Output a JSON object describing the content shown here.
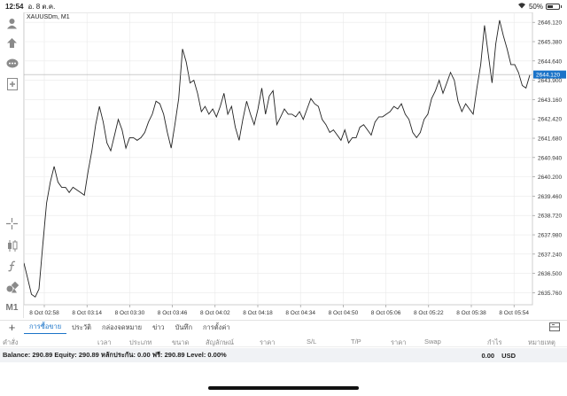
{
  "status_bar": {
    "time": "12:54",
    "date": "อ. 8 ต.ค.",
    "battery": "50%",
    "battery_level": 0.5
  },
  "chart": {
    "symbol_label": "XAUUSDm, M1",
    "current_price": "2644.120",
    "colors": {
      "line": "#222222",
      "grid": "#e9e9e9",
      "price_tag": "#1a73c8"
    }
  },
  "chart_data": {
    "type": "line",
    "series": [
      {
        "values": [
          2636.9,
          2636.3,
          2635.7,
          2635.6,
          2635.9,
          2637.6,
          2639.2,
          2640.0,
          2640.6,
          2640.0,
          2639.8,
          2639.8,
          2639.6,
          2639.8,
          2639.7,
          2639.6,
          2639.5,
          2640.4,
          2641.2,
          2642.2,
          2642.9,
          2642.3,
          2641.5,
          2641.2,
          2641.8,
          2642.4,
          2642.0,
          2641.3,
          2641.7,
          2641.7,
          2641.6,
          2641.7,
          2641.9,
          2642.3,
          2642.6,
          2643.1,
          2643.0,
          2642.6,
          2641.9,
          2641.3,
          2642.2,
          2643.2,
          2645.1,
          2644.6,
          2643.8,
          2643.9,
          2643.4,
          2642.7,
          2642.9,
          2642.6,
          2642.8,
          2642.5,
          2642.9,
          2643.4,
          2642.6,
          2642.9,
          2642.1,
          2641.6,
          2642.4,
          2643.1,
          2642.6,
          2642.2,
          2642.8,
          2643.6,
          2642.6,
          2643.3,
          2643.5,
          2642.2,
          2642.5,
          2642.8,
          2642.6,
          2642.6,
          2642.5,
          2642.7,
          2642.4,
          2642.8,
          2643.2,
          2643.0,
          2642.9,
          2642.4,
          2642.2,
          2641.9,
          2642.0,
          2641.8,
          2641.6,
          2642.0,
          2641.5,
          2641.7,
          2641.7,
          2642.1,
          2642.2,
          2642.0,
          2641.8,
          2642.3,
          2642.5,
          2642.5,
          2642.6,
          2642.7,
          2642.9,
          2642.8,
          2643.0,
          2642.6,
          2642.4,
          2641.9,
          2641.7,
          2641.9,
          2642.4,
          2642.6,
          2643.2,
          2643.5,
          2643.9,
          2643.4,
          2643.8,
          2644.2,
          2643.9,
          2643.1,
          2642.7,
          2643.0,
          2642.8,
          2642.6,
          2643.6,
          2644.5,
          2646.0,
          2644.9,
          2643.8,
          2645.3,
          2646.2,
          2645.6,
          2645.1,
          2644.5,
          2644.5,
          2644.2,
          2643.7,
          2643.6,
          2644.1
        ]
      }
    ],
    "x_tick_labels": [
      "8 Oct 02:58",
      "8 Oct 03:14",
      "8 Oct 03:30",
      "8 Oct 03:46",
      "8 Oct 04:02",
      "8 Oct 04:18",
      "8 Oct 04:34",
      "8 Oct 04:50",
      "8 Oct 05:06",
      "8 Oct 05:22",
      "8 Oct 05:38",
      "8 Oct 05:54"
    ],
    "y_tick_labels": [
      "2646.120",
      "2645.380",
      "2644.640",
      "2643.900",
      "2643.160",
      "2642.420",
      "2641.680",
      "2640.940",
      "2640.200",
      "2639.460",
      "2638.720",
      "2637.980",
      "2637.240",
      "2636.500",
      "2635.760"
    ],
    "ylim": [
      2635.3,
      2646.5
    ],
    "grid": true
  },
  "left_toolbar": {
    "items": [
      {
        "name": "account-icon",
        "glyph": "👤"
      },
      {
        "name": "trade-up-icon",
        "glyph": "⇪"
      },
      {
        "name": "chat-icon",
        "glyph": "💬"
      },
      {
        "name": "add-document-icon",
        "glyph": "⊞"
      },
      {
        "name": "crosshair-icon",
        "glyph": "✛"
      },
      {
        "name": "candles-icon",
        "glyph": "⫿"
      },
      {
        "name": "function-icon",
        "glyph": "ƒ"
      },
      {
        "name": "shapes-icon",
        "glyph": "◆"
      }
    ],
    "timeframe": "M1"
  },
  "tabs": {
    "add_glyph": "+",
    "items": [
      "การซื้อขาย",
      "ประวัติ",
      "กล่องจดหมาย",
      "ข่าว",
      "บันทึก",
      "การตั้งค่า"
    ],
    "active": 0
  },
  "columns": [
    "คำสั่ง",
    "เวลา",
    "ประเภท",
    "ขนาด",
    "สัญลักษณ์",
    "ราคา",
    "S/L",
    "T/P",
    "ราคา",
    "Swap",
    "กำไร",
    "หมายเหตุ"
  ],
  "balance": {
    "text": "Balance: 290.89 Equity: 290.89 หลักประกัน: 0.00 ฟรี: 290.89 Level: 0.00%",
    "profit": "0.00",
    "currency": "USD"
  }
}
